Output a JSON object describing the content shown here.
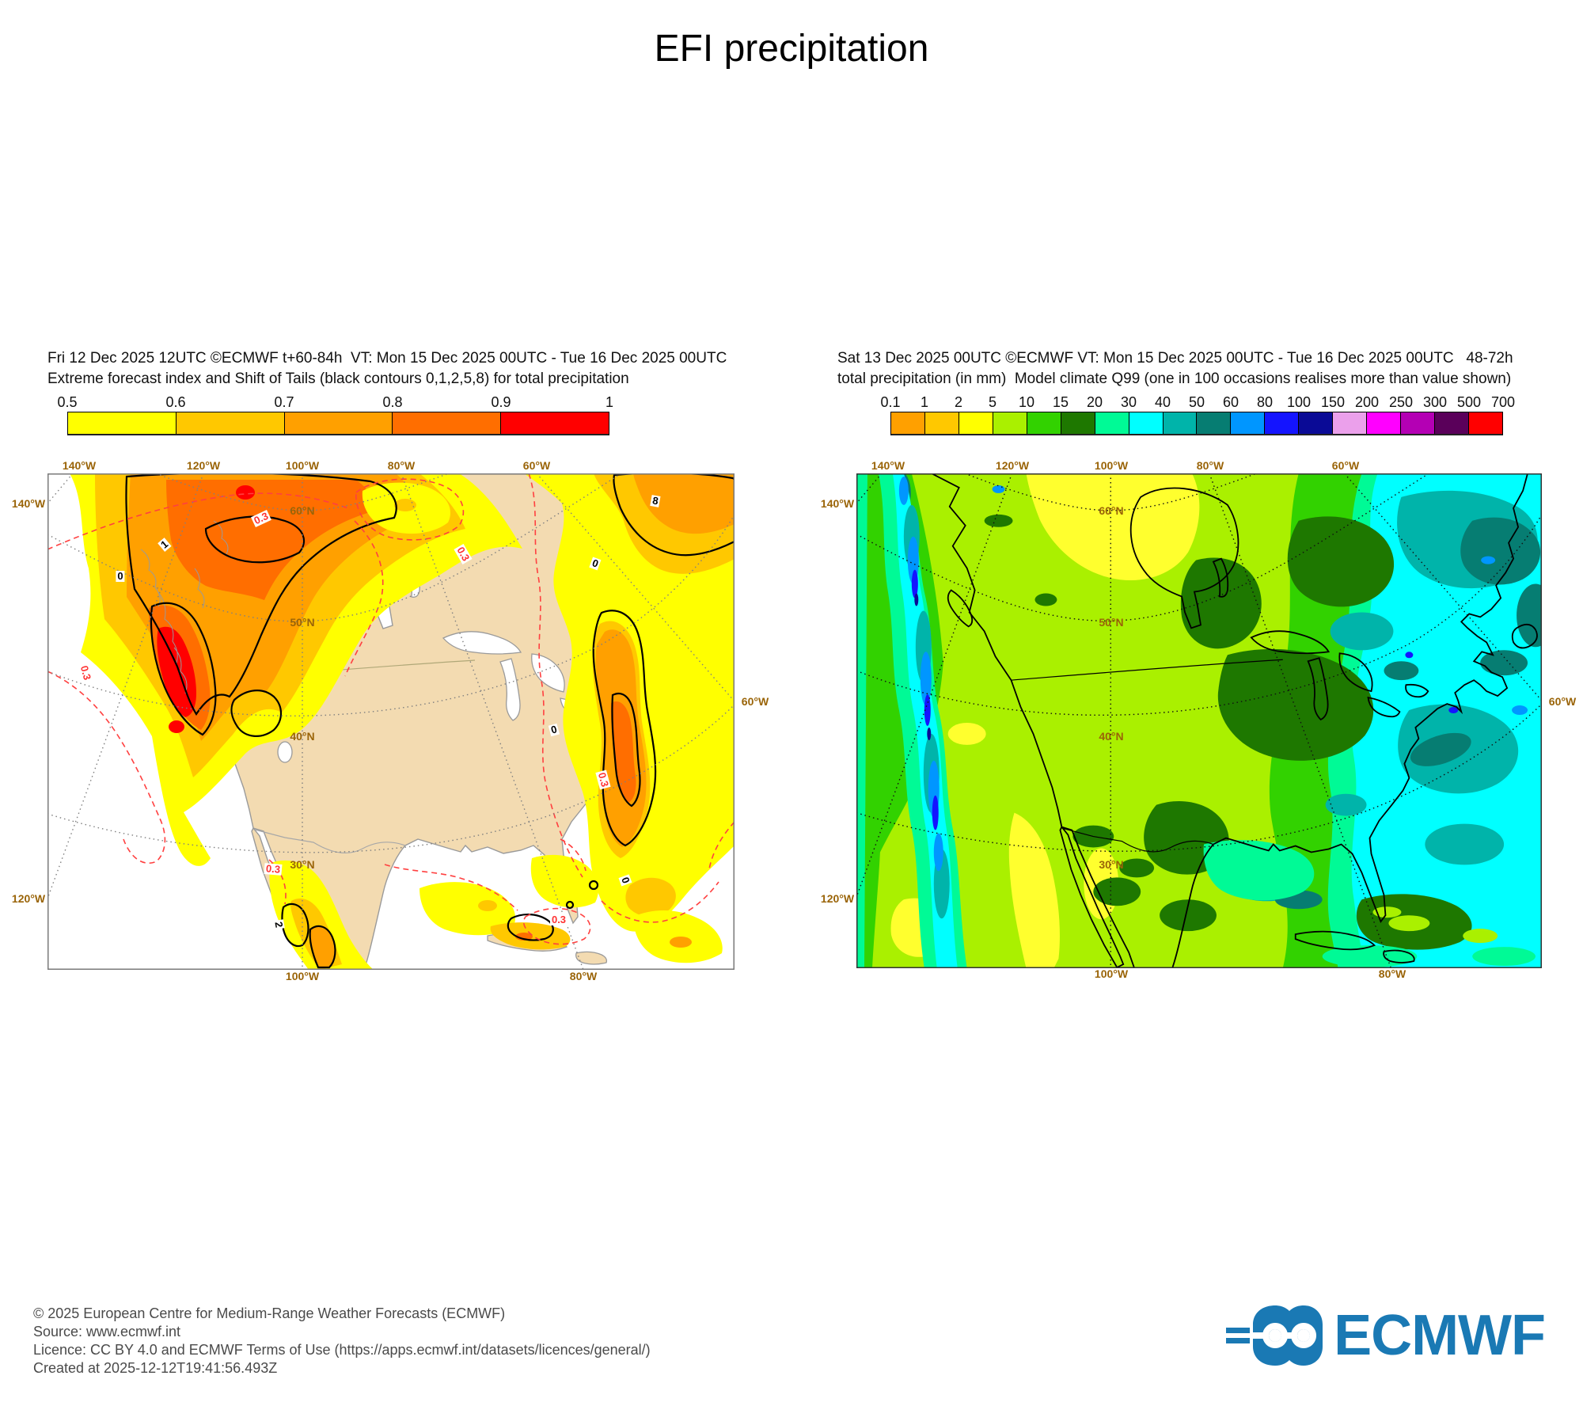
{
  "title": "EFI precipitation",
  "panels": {
    "left": {
      "header_line1": "Fri 12 Dec 2025 12UTC ©ECMWF t+60-84h  VT: Mon 15 Dec 2025 00UTC - Tue 16 Dec 2025 00UTC",
      "header_line2": "Extreme forecast index and Shift of Tails (black contours 0,1,2,5,8) for total precipitation",
      "colorbar": {
        "labels": [
          "0.5",
          "0.6",
          "0.7",
          "0.8",
          "0.9",
          "1"
        ],
        "colors": [
          "#ffff00",
          "#ffc800",
          "#ffa000",
          "#ff6e00",
          "#ff0000"
        ]
      },
      "axis": {
        "top": [
          "140°W",
          "120°W",
          "100°W",
          "80°W",
          "60°W"
        ],
        "left": [
          "140°W",
          "120°W"
        ],
        "right": [
          "60°W"
        ],
        "bottom": [
          "100°W",
          "80°W"
        ],
        "lat": [
          "60°N",
          "50°N",
          "40°N",
          "30°N"
        ]
      },
      "contour_red_label": "0.3",
      "contour_black_labels": [
        "8",
        "0",
        "0",
        "0",
        "1",
        "0",
        "2"
      ]
    },
    "right": {
      "header_line1": "Sat 13 Dec 2025 00UTC ©ECMWF VT: Mon 15 Dec 2025 00UTC - Tue 16 Dec 2025 00UTC   48-72h",
      "header_line2": "total precipitation (in mm)  Model climate Q99 (one in 100 occasions realises more than value shown)",
      "colorbar": {
        "labels": [
          "0.1",
          "1",
          "2",
          "5",
          "10",
          "15",
          "20",
          "30",
          "40",
          "50",
          "60",
          "80",
          "100",
          "150",
          "200",
          "250",
          "300",
          "500",
          "700"
        ],
        "colors": [
          "#ffa000",
          "#ffc800",
          "#ffff00",
          "#aaf000",
          "#32d200",
          "#1e7800",
          "#00fa96",
          "#00ffff",
          "#00b4aa",
          "#067d72",
          "#0096ff",
          "#1414ff",
          "#0a0a96",
          "#eba0eb",
          "#ff00ff",
          "#b400b4",
          "#5a005a",
          "#ff0000"
        ]
      },
      "axis": {
        "top": [
          "140°W",
          "120°W",
          "100°W",
          "80°W",
          "60°W"
        ],
        "left": [
          "140°W",
          "120°W"
        ],
        "right": [
          "60°W"
        ],
        "bottom": [
          "100°W",
          "80°W"
        ],
        "lat": [
          "60°N",
          "50°N",
          "40°N",
          "30°N"
        ]
      }
    }
  },
  "footer": {
    "lines": [
      "© 2025 European Centre for Medium-Range Weather Forecasts (ECMWF)",
      "Source: www.ecmwf.int",
      "Licence: CC BY 4.0 and ECMWF Terms of Use (https://apps.ecmwf.int/datasets/licences/general/)",
      "Created at 2025-12-12T19:41:56.493Z"
    ]
  },
  "logo": {
    "text": "ECMWF",
    "color": "#1a79b4"
  }
}
